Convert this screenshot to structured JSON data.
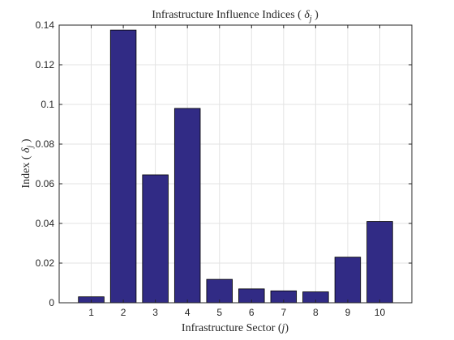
{
  "chart_data": {
    "type": "bar",
    "title_prefix": "Infrastructure Influence Indices ( ",
    "title_symbol": "δ",
    "title_subscript": "j",
    "title_suffix": " )",
    "xlabel_prefix": "Infrastructure Sector (",
    "xlabel_symbol": "j",
    "xlabel_suffix": ")",
    "ylabel_prefix": "Index ( ",
    "ylabel_symbol": "δ",
    "ylabel_subscript": "j",
    "ylabel_suffix": " )",
    "categories": [
      "1",
      "2",
      "3",
      "4",
      "5",
      "6",
      "7",
      "8",
      "9",
      "10"
    ],
    "values": [
      0.003,
      0.1375,
      0.0645,
      0.098,
      0.0118,
      0.007,
      0.006,
      0.0055,
      0.023,
      0.041
    ],
    "xlim": [
      0,
      11
    ],
    "ylim": [
      0,
      0.14
    ],
    "yticks": [
      "0",
      "0.02",
      "0.04",
      "0.06",
      "0.08",
      "0.1",
      "0.12",
      "0.14"
    ],
    "ytick_values": [
      0,
      0.02,
      0.04,
      0.06,
      0.08,
      0.1,
      0.12,
      0.14
    ],
    "grid": true,
    "bar_color": "#312b85"
  }
}
